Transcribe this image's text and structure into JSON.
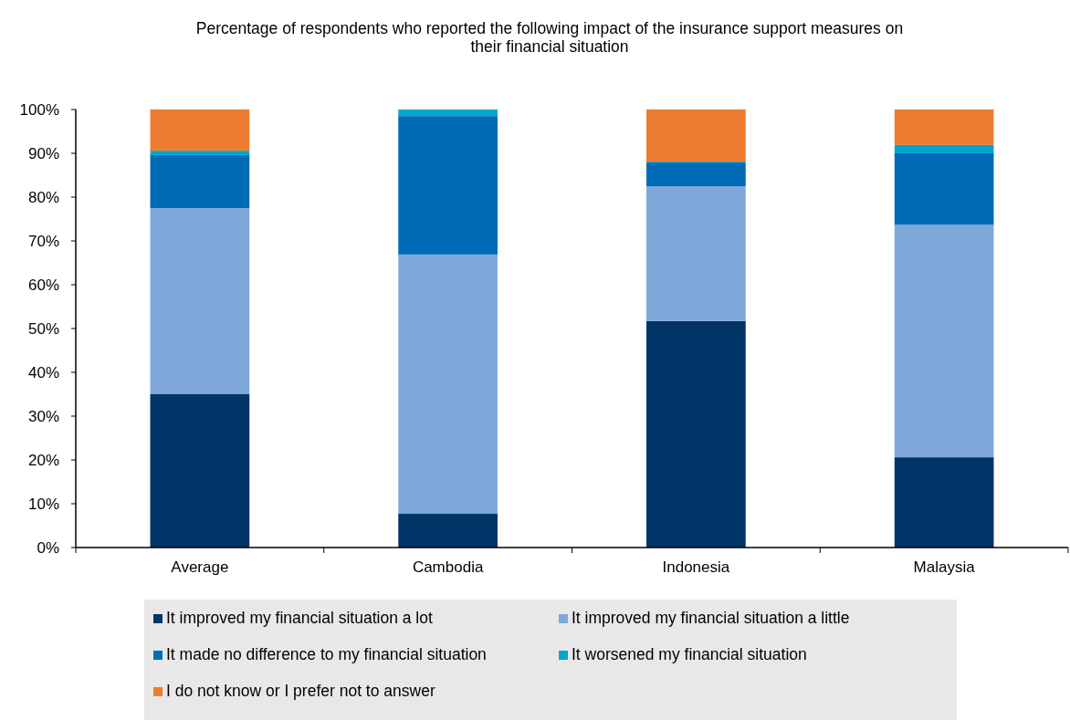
{
  "chart_data": {
    "type": "bar",
    "title": "Percentage of respondents who reported the following impact of the insurance support measures on their financial situation",
    "categories": [
      "Average",
      "Cambodia",
      "Indonesia",
      "Malaysia"
    ],
    "stacked": true,
    "ylim": [
      0,
      100
    ],
    "yticks": [
      {
        "value": 0,
        "label": "0%"
      },
      {
        "value": 10,
        "label": "10%"
      },
      {
        "value": 20,
        "label": "20%"
      },
      {
        "value": 30,
        "label": "30%"
      },
      {
        "value": 40,
        "label": "40%"
      },
      {
        "value": 50,
        "label": "50%"
      },
      {
        "value": 60,
        "label": "60%"
      },
      {
        "value": 70,
        "label": "70%"
      },
      {
        "value": 80,
        "label": "80%"
      },
      {
        "value": 90,
        "label": "90%"
      },
      {
        "value": 100,
        "label": "100%"
      }
    ],
    "legend": "bottom",
    "series": [
      {
        "name": "It improved my financial situation a lot",
        "color": "#003366",
        "values": [
          35,
          7.7,
          51.7,
          20.6
        ]
      },
      {
        "name": "It improved my financial situation a little",
        "color": "#7fa7d9",
        "values": [
          42.5,
          59.2,
          30.8,
          53.1
        ]
      },
      {
        "name": "It made no difference to my financial situation",
        "color": "#006bb6",
        "values": [
          12.1,
          31.6,
          5.4,
          16.3
        ]
      },
      {
        "name": "It worsened my financial situation",
        "color": "#00a6d0",
        "values": [
          1,
          1.5,
          0.2,
          1.9
        ]
      },
      {
        "name": "I do not know or I prefer not to answer",
        "color": "#ed7d31",
        "values": [
          9.4,
          0,
          11.9,
          8.1
        ]
      }
    ]
  }
}
